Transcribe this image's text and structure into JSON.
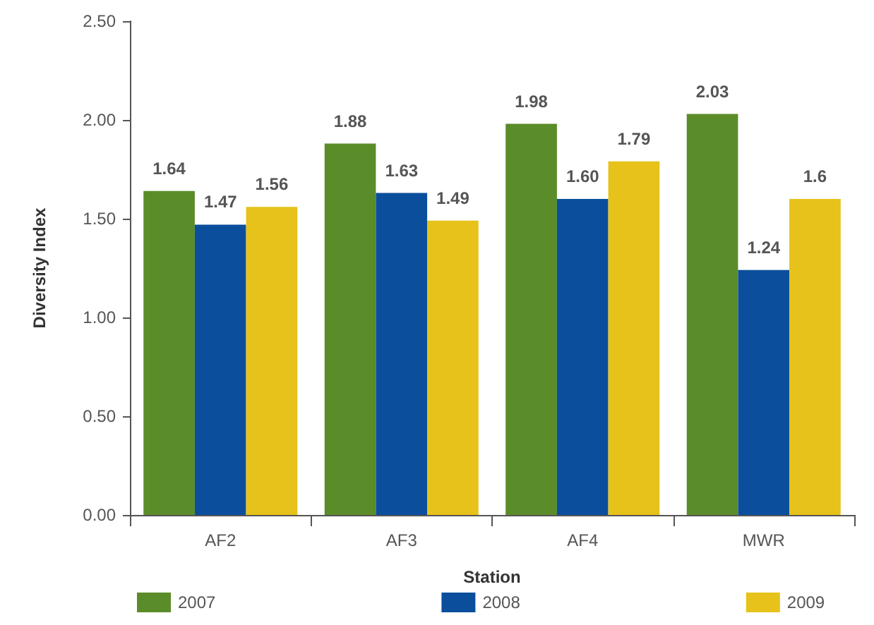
{
  "chart_data": {
    "type": "bar",
    "xlabel": "Station",
    "ylabel": "Diversity Index",
    "categories": [
      "AF2",
      "AF3",
      "AF4",
      "MWR"
    ],
    "series": [
      {
        "name": "2007",
        "color": "#5b8c2a",
        "values": [
          1.64,
          1.88,
          1.98,
          2.03
        ],
        "value_labels": [
          "1.64",
          "1.88",
          "1.98",
          "2.03"
        ]
      },
      {
        "name": "2008",
        "color": "#0b4f9c",
        "values": [
          1.47,
          1.63,
          1.6,
          1.24
        ],
        "value_labels": [
          "1.47",
          "1.63",
          "1.60",
          "1.24"
        ]
      },
      {
        "name": "2009",
        "color": "#e6c21a",
        "values": [
          1.56,
          1.49,
          1.79,
          1.6
        ],
        "value_labels": [
          "1.56",
          "1.49",
          "1.79",
          "1.6"
        ]
      }
    ],
    "ylim": [
      0,
      2.5
    ],
    "yticks": [
      {
        "value": 0,
        "label": "0.00"
      },
      {
        "value": 0.5,
        "label": "0.50"
      },
      {
        "value": 1,
        "label": "1.00"
      },
      {
        "value": 1.5,
        "label": "1.50"
      },
      {
        "value": 2,
        "label": "2.00"
      },
      {
        "value": 2.5,
        "label": "2.50"
      }
    ],
    "grid": false,
    "legend": "bottom"
  }
}
